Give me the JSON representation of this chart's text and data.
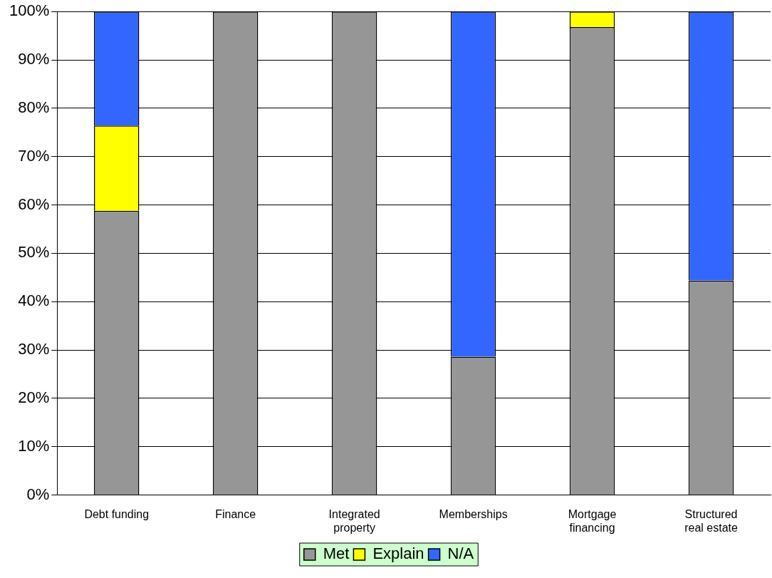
{
  "chart_data": {
    "type": "bar",
    "stacked": true,
    "categories": [
      "Debt funding",
      "Finance",
      "Integrated property",
      "Memberships",
      "Mortgage financing",
      "Structured real estate"
    ],
    "series": [
      {
        "name": "Met",
        "color": "#969696",
        "values": [
          58.8,
          100,
          100,
          28.6,
          96.8,
          44.4
        ]
      },
      {
        "name": "Explain",
        "color": "#ffff00",
        "values": [
          17.6,
          0,
          0,
          0,
          3.2,
          0
        ]
      },
      {
        "name": "N/A",
        "color": "#3366ff",
        "values": [
          23.6,
          0,
          0,
          71.4,
          0,
          55.6
        ]
      }
    ],
    "ylim": [
      0,
      100
    ],
    "yticks": [
      {
        "value": 0,
        "label": "0%"
      },
      {
        "value": 10,
        "label": "10%"
      },
      {
        "value": 20,
        "label": "20%"
      },
      {
        "value": 30,
        "label": "30%"
      },
      {
        "value": 40,
        "label": "40%"
      },
      {
        "value": 50,
        "label": "50%"
      },
      {
        "value": 60,
        "label": "60%"
      },
      {
        "value": 70,
        "label": "70%"
      },
      {
        "value": 80,
        "label": "80%"
      },
      {
        "value": 90,
        "label": "90%"
      },
      {
        "value": 100,
        "label": "100%"
      }
    ],
    "grid": "y",
    "legend": "bottom"
  }
}
